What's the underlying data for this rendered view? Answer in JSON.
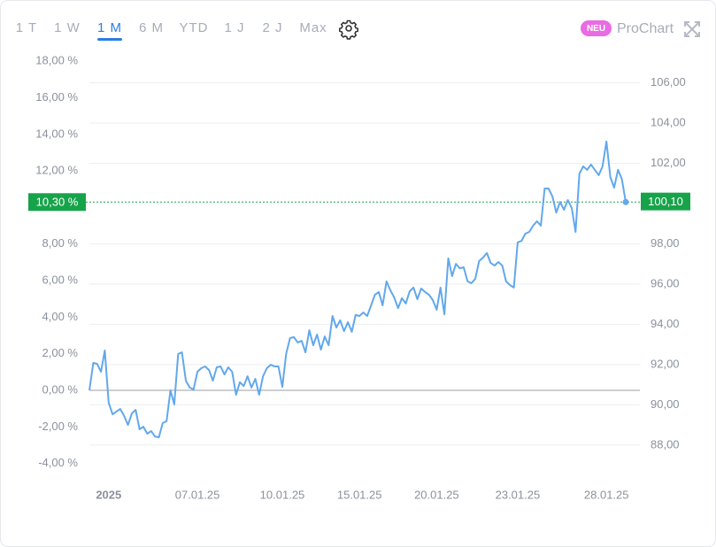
{
  "tabs": [
    "1 T",
    "1 W",
    "1 M",
    "6 M",
    "YTD",
    "1 J",
    "2 J",
    "Max"
  ],
  "active_tab": 2,
  "badge": "NEU",
  "prochart": "ProChart",
  "chart_data": {
    "type": "line",
    "x": [
      0,
      1,
      2,
      3,
      4,
      5,
      6,
      7,
      8,
      9,
      10,
      11,
      12,
      13,
      14,
      15,
      16,
      17,
      18,
      19,
      20,
      21,
      22,
      23,
      24,
      25,
      26,
      27,
      28,
      29,
      30,
      31,
      32,
      33,
      34,
      35,
      36,
      37,
      38,
      39,
      40,
      41,
      42,
      43,
      44,
      45,
      46,
      47,
      48,
      49,
      50,
      51,
      52,
      53,
      54,
      55,
      56,
      57,
      58,
      59,
      60,
      61,
      62,
      63,
      64,
      65,
      66,
      67,
      68,
      69,
      70,
      71,
      72,
      73,
      74,
      75,
      76,
      77,
      78,
      79,
      80,
      81,
      82,
      83,
      84,
      85,
      86,
      87,
      88,
      89,
      90,
      91,
      92,
      93,
      94,
      95,
      96,
      97,
      98,
      99,
      100,
      101,
      102,
      103,
      104,
      105,
      106,
      107,
      108,
      109,
      110,
      111,
      112,
      113,
      114,
      115,
      116,
      117,
      118,
      119,
      120,
      121,
      122,
      123,
      124,
      125,
      126,
      127,
      128,
      129,
      130,
      131,
      132,
      133,
      134,
      135,
      136,
      137,
      138,
      139
    ],
    "series": [
      {
        "color": "#62a8ec",
        "values": [
          0.0,
          1.5,
          1.45,
          1.02,
          2.18,
          -0.68,
          -1.31,
          -1.16,
          -1.02,
          -1.4,
          -1.89,
          -1.26,
          -1.07,
          -2.13,
          -1.99,
          -2.37,
          -2.23,
          -2.52,
          -2.57,
          -1.79,
          -1.69,
          0.0,
          -0.77,
          1.99,
          2.08,
          0.53,
          0.15,
          0.05,
          1.02,
          1.21,
          1.31,
          1.11,
          0.53,
          1.26,
          1.31,
          0.87,
          1.26,
          1.02,
          -0.24,
          0.44,
          0.24,
          0.77,
          0.15,
          0.63,
          -0.24,
          0.77,
          1.21,
          1.4,
          1.31,
          1.31,
          0.19,
          1.99,
          2.86,
          2.91,
          2.62,
          2.71,
          2.08,
          3.29,
          2.47,
          3.05,
          2.23,
          2.95,
          2.47,
          4.07,
          3.44,
          3.83,
          3.24,
          3.73,
          3.2,
          4.12,
          4.07,
          4.26,
          4.07,
          4.65,
          5.23,
          5.38,
          4.65,
          5.96,
          5.47,
          5.08,
          4.5,
          5.04,
          4.75,
          5.42,
          5.62,
          4.99,
          5.57,
          5.38,
          5.23,
          4.94,
          4.41,
          5.62,
          4.16,
          7.22,
          6.25,
          6.92,
          6.68,
          6.73,
          5.96,
          5.86,
          6.1,
          7.07,
          7.26,
          7.51,
          6.97,
          6.83,
          7.02,
          6.83,
          5.96,
          5.76,
          5.62,
          8.09,
          8.18,
          8.57,
          8.67,
          9.01,
          9.25,
          9.01,
          11.04,
          11.04,
          10.61,
          9.73,
          10.31,
          9.88,
          10.41,
          9.98,
          8.67,
          11.86,
          12.25,
          12.06,
          12.35,
          12.06,
          11.77,
          12.25,
          13.61,
          11.67,
          11.09,
          12.06,
          11.57,
          10.3
        ]
      }
    ],
    "xlim": [
      0,
      139
    ],
    "xticks": [
      {
        "value": 5,
        "label": "2025"
      },
      {
        "value": 28,
        "label": "07.01.25"
      },
      {
        "value": 50,
        "label": "10.01.25"
      },
      {
        "value": 70,
        "label": "15.01.25"
      },
      {
        "value": 90,
        "label": "20.01.25"
      },
      {
        "value": 111,
        "label": "23.01.25"
      },
      {
        "value": 134,
        "label": "28.01.25"
      }
    ],
    "ylim": [
      -4.55,
      18.69
    ],
    "yticks": [
      {
        "value": -4,
        "label": "-4,00 %"
      },
      {
        "value": -2,
        "label": "-2,00 %"
      },
      {
        "value": 0,
        "label": "0,00 %"
      },
      {
        "value": 2,
        "label": "2,00 %"
      },
      {
        "value": 4,
        "label": "4,00 %"
      },
      {
        "value": 6,
        "label": "6,00 %"
      },
      {
        "value": 8,
        "label": "8,00 %"
      },
      {
        "value": 12,
        "label": "12,00 %"
      },
      {
        "value": 14,
        "label": "14,00 %"
      },
      {
        "value": 16,
        "label": "16,00 %"
      },
      {
        "value": 18,
        "label": "18,00 %"
      }
    ],
    "y2lim": [
      86.59,
      107.69
    ],
    "y2ticks": [
      {
        "value": 88,
        "label": "88,00"
      },
      {
        "value": 90,
        "label": "90,00"
      },
      {
        "value": 92,
        "label": "92,00"
      },
      {
        "value": 94,
        "label": "94,00"
      },
      {
        "value": 96,
        "label": "96,00"
      },
      {
        "value": 98,
        "label": "98,00"
      },
      {
        "value": 102,
        "label": "102,00"
      },
      {
        "value": 104,
        "label": "104,00"
      },
      {
        "value": 106,
        "label": "106,00"
      }
    ],
    "grid": "y2",
    "current": {
      "value": 10.3,
      "label": "10,30 %"
    },
    "current_price": {
      "value": 100.1,
      "label": "100,10"
    }
  }
}
